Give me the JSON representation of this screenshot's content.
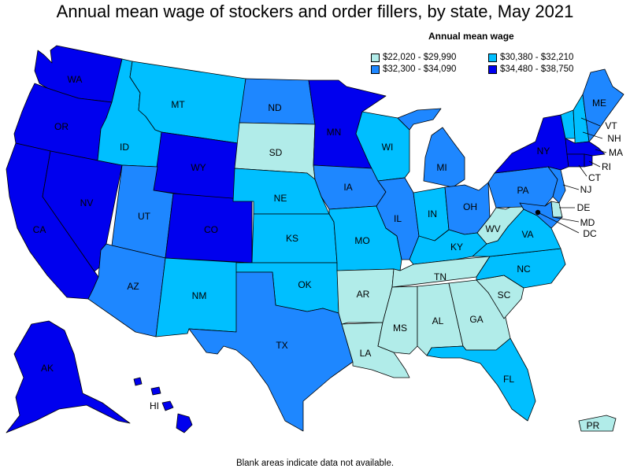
{
  "title": "Annual mean wage of stockers and order fillers, by state, May 2021",
  "legend": {
    "title": "Annual mean wage",
    "bins": [
      {
        "key": "b1",
        "label": "$22,020 - $29,990",
        "color": "#b1ece9"
      },
      {
        "key": "b2",
        "label": "$30,380 - $32,210",
        "color": "#00bfff"
      },
      {
        "key": "b3",
        "label": "$32,300 - $34,090",
        "color": "#1e87ff"
      },
      {
        "key": "b4",
        "label": "$34,480 - $38,750",
        "color": "#0000ee"
      }
    ]
  },
  "footnote": "Blank areas indicate data not available.",
  "states": {
    "WA": "b4",
    "OR": "b4",
    "CA": "b4",
    "NV": "b4",
    "ID": "b2",
    "MT": "b2",
    "WY": "b4",
    "UT": "b3",
    "AZ": "b3",
    "CO": "b4",
    "NM": "b2",
    "ND": "b3",
    "SD": "b1",
    "NE": "b2",
    "KS": "b2",
    "OK": "b2",
    "TX": "b3",
    "MN": "b4",
    "IA": "b3",
    "MO": "b2",
    "AR": "b1",
    "LA": "b1",
    "WI": "b2",
    "IL": "b3",
    "MI": "b3",
    "IN": "b2",
    "OH": "b3",
    "KY": "b2",
    "TN": "b1",
    "MS": "b1",
    "AL": "b1",
    "GA": "b1",
    "FL": "b2",
    "SC": "b1",
    "NC": "b2",
    "VA": "b2",
    "WV": "b1",
    "PA": "b3",
    "NY": "b4",
    "VT": "b2",
    "NH": "b2",
    "ME": "b3",
    "MA": "b4",
    "RI": "b4",
    "CT": "b4",
    "NJ": "b3",
    "DE": "b1",
    "MD": "b3",
    "DC": "b4",
    "AK": "b4",
    "HI": "b4",
    "PR": "b1"
  }
}
